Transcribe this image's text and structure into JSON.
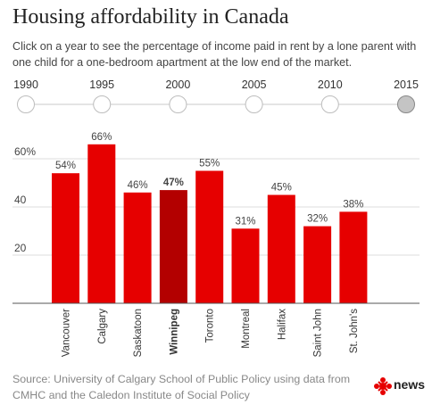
{
  "header": {
    "title": "Housing affordability in Canada",
    "subtitle": "Click on a year to see the percentage of income paid in rent by a lone parent with one child for a one-bedroom apartment at the low end of the market."
  },
  "timeline": {
    "years": [
      "1990",
      "1995",
      "2000",
      "2005",
      "2010",
      "2015"
    ],
    "selected_year": "2015"
  },
  "chart_data": {
    "type": "bar",
    "categories": [
      "Vancouver",
      "Calgary",
      "Saskatoon",
      "Winnipeg",
      "Toronto",
      "Montreal",
      "Halifax",
      "Saint John",
      "St. John's"
    ],
    "values": [
      54,
      66,
      46,
      47,
      55,
      31,
      45,
      32,
      38
    ],
    "value_labels": [
      "54%",
      "66%",
      "46%",
      "47%",
      "55%",
      "31%",
      "45%",
      "32%",
      "38%"
    ],
    "highlighted_category": "Winnipeg",
    "y_ticks": [
      "20",
      "40",
      "60%"
    ],
    "y_tick_values": [
      20,
      40,
      60
    ],
    "ylim": [
      0,
      70
    ],
    "grid": true,
    "colors": {
      "bar": "#e60000",
      "highlight": "#b30000",
      "grid": "#dddddd",
      "axis": "#555555"
    }
  },
  "footer": {
    "source": "Source: University of Calgary School of Public Policy using data from CMHC and the Caledon Institute of Social Policy",
    "logo_text": "news",
    "logo_icon": "cbc-gem-icon"
  }
}
